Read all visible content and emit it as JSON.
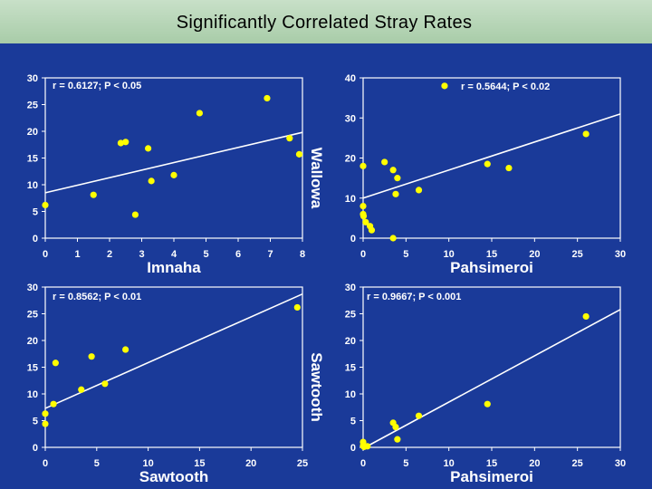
{
  "title": "Significantly Correlated Stray Rates",
  "colors": {
    "background": "#1a3a99",
    "marker": "#ffff00",
    "line": "#ffffff",
    "text": "#ffffff"
  },
  "chart_data": [
    {
      "type": "scatter",
      "xlabel": "Imnaha",
      "ylabel": "Wallowa",
      "xlim": [
        0,
        8
      ],
      "ylim": [
        0,
        30
      ],
      "xticks": [
        0,
        1,
        2,
        3,
        4,
        5,
        6,
        7,
        8
      ],
      "yticks": [
        0,
        5,
        10,
        15,
        20,
        25,
        30
      ],
      "annotation": "r = 0.6127; P < 0.05",
      "points": [
        [
          0.0,
          6.2
        ],
        [
          1.5,
          8.1
        ],
        [
          2.35,
          17.8
        ],
        [
          2.5,
          18.0
        ],
        [
          2.8,
          4.4
        ],
        [
          3.2,
          16.8
        ],
        [
          3.3,
          10.7
        ],
        [
          4.0,
          11.8
        ],
        [
          4.8,
          23.4
        ],
        [
          6.9,
          26.2
        ],
        [
          7.6,
          18.7
        ],
        [
          7.9,
          15.7
        ]
      ],
      "fit": [
        [
          0,
          8.5
        ],
        [
          8,
          19.8
        ]
      ]
    },
    {
      "type": "scatter",
      "xlabel": "Pahsimeroi",
      "ylabel": "",
      "xlim": [
        0,
        30
      ],
      "ylim": [
        0,
        40
      ],
      "xticks": [
        0,
        5,
        10,
        15,
        20,
        25,
        30
      ],
      "yticks": [
        0,
        10,
        20,
        30,
        40
      ],
      "annotation": "r = 0.5644; P < 0.02",
      "points": [
        [
          0.0,
          18.0
        ],
        [
          0.0,
          8.0
        ],
        [
          0.0,
          6.0
        ],
        [
          0.05,
          5.5
        ],
        [
          0.3,
          4.0
        ],
        [
          0.8,
          3.0
        ],
        [
          1.0,
          2.0
        ],
        [
          2.5,
          19.0
        ],
        [
          3.5,
          17.0
        ],
        [
          4.0,
          15.0
        ],
        [
          3.8,
          11.0
        ],
        [
          3.5,
          0.0
        ],
        [
          6.5,
          12.0
        ],
        [
          14.5,
          18.5
        ],
        [
          17.0,
          17.5
        ],
        [
          9.5,
          38.0
        ],
        [
          26.0,
          26.0
        ]
      ],
      "fit": [
        [
          0,
          10.0
        ],
        [
          30,
          31.0
        ]
      ]
    },
    {
      "type": "scatter",
      "xlabel": "Sawtooth",
      "ylabel": "Sawtooth",
      "xlim": [
        0,
        25
      ],
      "ylim": [
        0,
        30
      ],
      "xticks": [
        0,
        5,
        10,
        15,
        20,
        25
      ],
      "yticks": [
        0,
        5,
        10,
        15,
        20,
        25,
        30
      ],
      "annotation": "r = 0.8562; P < 0.01",
      "points": [
        [
          0.0,
          6.3
        ],
        [
          0.0,
          4.4
        ],
        [
          0.8,
          8.1
        ],
        [
          1.0,
          15.8
        ],
        [
          3.5,
          10.8
        ],
        [
          4.5,
          17.0
        ],
        [
          5.8,
          11.9
        ],
        [
          7.8,
          18.3
        ],
        [
          24.5,
          26.2
        ]
      ],
      "fit": [
        [
          0,
          7.3
        ],
        [
          25,
          28.7
        ]
      ]
    },
    {
      "type": "scatter",
      "xlabel": "Pahsimeroi",
      "ylabel": "",
      "xlim": [
        0,
        30
      ],
      "ylim": [
        0,
        30
      ],
      "xticks": [
        0,
        5,
        10,
        15,
        20,
        25,
        30
      ],
      "yticks": [
        0,
        5,
        10,
        15,
        20,
        25,
        30
      ],
      "annotation": "r = 0.9667; P < 0.001",
      "points": [
        [
          0.0,
          1.0
        ],
        [
          0.0,
          0.3
        ],
        [
          0.1,
          0.1
        ],
        [
          0.5,
          0.2
        ],
        [
          3.5,
          4.6
        ],
        [
          3.8,
          3.8
        ],
        [
          4.0,
          1.5
        ],
        [
          6.5,
          5.9
        ],
        [
          14.5,
          8.1
        ],
        [
          26.0,
          24.5
        ]
      ],
      "fit": [
        [
          0,
          -0.2
        ],
        [
          30,
          25.8
        ]
      ]
    }
  ]
}
